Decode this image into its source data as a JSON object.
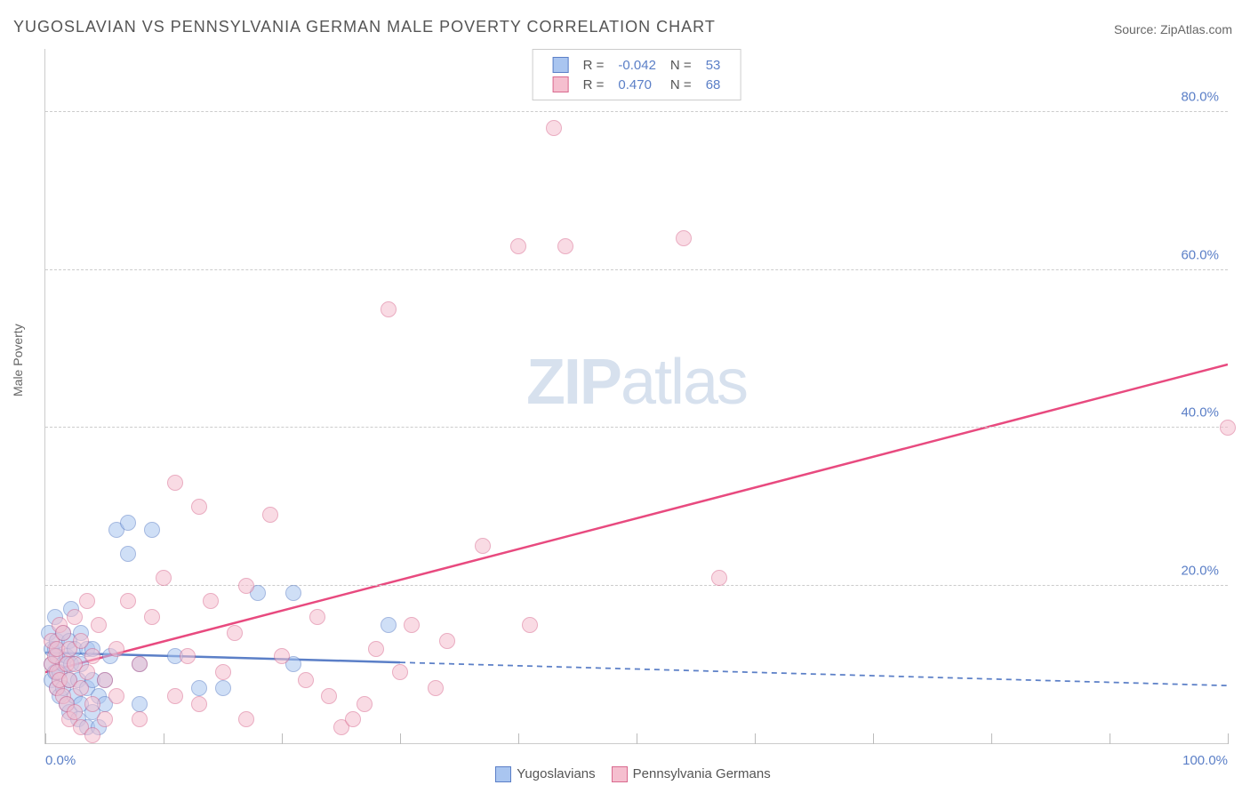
{
  "title": "YUGOSLAVIAN VS PENNSYLVANIA GERMAN MALE POVERTY CORRELATION CHART",
  "source_prefix": "Source: ",
  "source_name": "ZipAtlas.com",
  "ylabel": "Male Poverty",
  "watermark_bold": "ZIP",
  "watermark_light": "atlas",
  "chart": {
    "type": "scatter",
    "xlim": [
      0,
      100
    ],
    "ylim": [
      0,
      88
    ],
    "y_ticks": [
      20,
      40,
      60,
      80
    ],
    "y_tick_labels": [
      "20.0%",
      "40.0%",
      "60.0%",
      "80.0%"
    ],
    "x_ticks": [
      0,
      10,
      20,
      30,
      40,
      50,
      60,
      70,
      80,
      90,
      100
    ],
    "x_axis_labels": {
      "0": "0.0%",
      "100": "100.0%"
    },
    "background_color": "#ffffff",
    "grid_color": "#cccccc",
    "grid_dash": "4,4",
    "marker_radius": 9,
    "marker_opacity": 0.55,
    "series": [
      {
        "id": "yugoslavians",
        "label": "Yugoslavians",
        "fill": "#a9c5f0",
        "stroke": "#5b7fc7",
        "R_label": "R =",
        "R": "-0.042",
        "N_label": "N =",
        "N": "53",
        "trend": {
          "x1": 0,
          "y1": 11.5,
          "x2": 100,
          "y2": 7.3,
          "solid_until_x": 30,
          "stroke": "#5b7fc7",
          "width": 2.5
        },
        "points": [
          [
            0.3,
            14
          ],
          [
            0.5,
            12
          ],
          [
            0.5,
            10
          ],
          [
            0.5,
            8
          ],
          [
            0.8,
            16
          ],
          [
            0.8,
            12
          ],
          [
            0.8,
            9
          ],
          [
            1,
            13
          ],
          [
            1,
            11
          ],
          [
            1,
            7
          ],
          [
            1.2,
            6
          ],
          [
            1.2,
            9
          ],
          [
            1.5,
            14
          ],
          [
            1.5,
            10
          ],
          [
            1.5,
            7
          ],
          [
            1.8,
            11
          ],
          [
            1.8,
            5
          ],
          [
            2,
            13
          ],
          [
            2,
            8
          ],
          [
            2,
            4
          ],
          [
            2.2,
            17
          ],
          [
            2.2,
            10
          ],
          [
            2.5,
            6
          ],
          [
            2.5,
            12
          ],
          [
            2.8,
            8
          ],
          [
            2.8,
            3
          ],
          [
            3,
            5
          ],
          [
            3,
            10
          ],
          [
            3,
            14
          ],
          [
            3.5,
            7
          ],
          [
            3.5,
            12
          ],
          [
            3.5,
            2
          ],
          [
            4,
            4
          ],
          [
            4,
            8
          ],
          [
            4,
            12
          ],
          [
            4.5,
            6
          ],
          [
            4.5,
            2
          ],
          [
            5,
            8
          ],
          [
            5,
            5
          ],
          [
            5.5,
            11
          ],
          [
            6,
            27
          ],
          [
            7,
            28
          ],
          [
            7,
            24
          ],
          [
            8,
            10
          ],
          [
            8,
            5
          ],
          [
            9,
            27
          ],
          [
            11,
            11
          ],
          [
            13,
            7
          ],
          [
            15,
            7
          ],
          [
            18,
            19
          ],
          [
            21,
            19
          ],
          [
            21,
            10
          ],
          [
            29,
            15
          ]
        ]
      },
      {
        "id": "pennsylvania_germans",
        "label": "Pennsylvania Germans",
        "fill": "#f5bfcf",
        "stroke": "#d96a8f",
        "R_label": "R =",
        "R": " 0.470",
        "N_label": "N =",
        "N": "68",
        "trend": {
          "x1": 0,
          "y1": 9,
          "x2": 100,
          "y2": 48,
          "solid_until_x": 100,
          "stroke": "#e84a7f",
          "width": 2.5
        },
        "points": [
          [
            0.5,
            10
          ],
          [
            0.5,
            13
          ],
          [
            0.8,
            11
          ],
          [
            1,
            9
          ],
          [
            1,
            7
          ],
          [
            1,
            12
          ],
          [
            1.2,
            15
          ],
          [
            1.2,
            8
          ],
          [
            1.5,
            6
          ],
          [
            1.5,
            14
          ],
          [
            1.8,
            10
          ],
          [
            1.8,
            5
          ],
          [
            2,
            12
          ],
          [
            2,
            8
          ],
          [
            2,
            3
          ],
          [
            2.5,
            16
          ],
          [
            2.5,
            10
          ],
          [
            2.5,
            4
          ],
          [
            3,
            13
          ],
          [
            3,
            7
          ],
          [
            3,
            2
          ],
          [
            3.5,
            18
          ],
          [
            3.5,
            9
          ],
          [
            4,
            5
          ],
          [
            4,
            11
          ],
          [
            4,
            1
          ],
          [
            4.5,
            15
          ],
          [
            5,
            8
          ],
          [
            5,
            3
          ],
          [
            6,
            12
          ],
          [
            6,
            6
          ],
          [
            7,
            18
          ],
          [
            8,
            10
          ],
          [
            8,
            3
          ],
          [
            9,
            16
          ],
          [
            10,
            21
          ],
          [
            11,
            33
          ],
          [
            11,
            6
          ],
          [
            12,
            11
          ],
          [
            13,
            30
          ],
          [
            13,
            5
          ],
          [
            14,
            18
          ],
          [
            15,
            9
          ],
          [
            16,
            14
          ],
          [
            17,
            20
          ],
          [
            17,
            3
          ],
          [
            19,
            29
          ],
          [
            20,
            11
          ],
          [
            22,
            8
          ],
          [
            23,
            16
          ],
          [
            24,
            6
          ],
          [
            25,
            2
          ],
          [
            26,
            3
          ],
          [
            27,
            5
          ],
          [
            28,
            12
          ],
          [
            29,
            55
          ],
          [
            30,
            9
          ],
          [
            31,
            15
          ],
          [
            33,
            7
          ],
          [
            34,
            13
          ],
          [
            37,
            25
          ],
          [
            40,
            63
          ],
          [
            41,
            15
          ],
          [
            43,
            78
          ],
          [
            44,
            63
          ],
          [
            54,
            64
          ],
          [
            57,
            21
          ],
          [
            100,
            40
          ]
        ]
      }
    ]
  },
  "legend_bottom": [
    {
      "label": "Yugoslavians",
      "fill": "#a9c5f0",
      "stroke": "#5b7fc7"
    },
    {
      "label": "Pennsylvania Germans",
      "fill": "#f5bfcf",
      "stroke": "#d96a8f"
    }
  ]
}
